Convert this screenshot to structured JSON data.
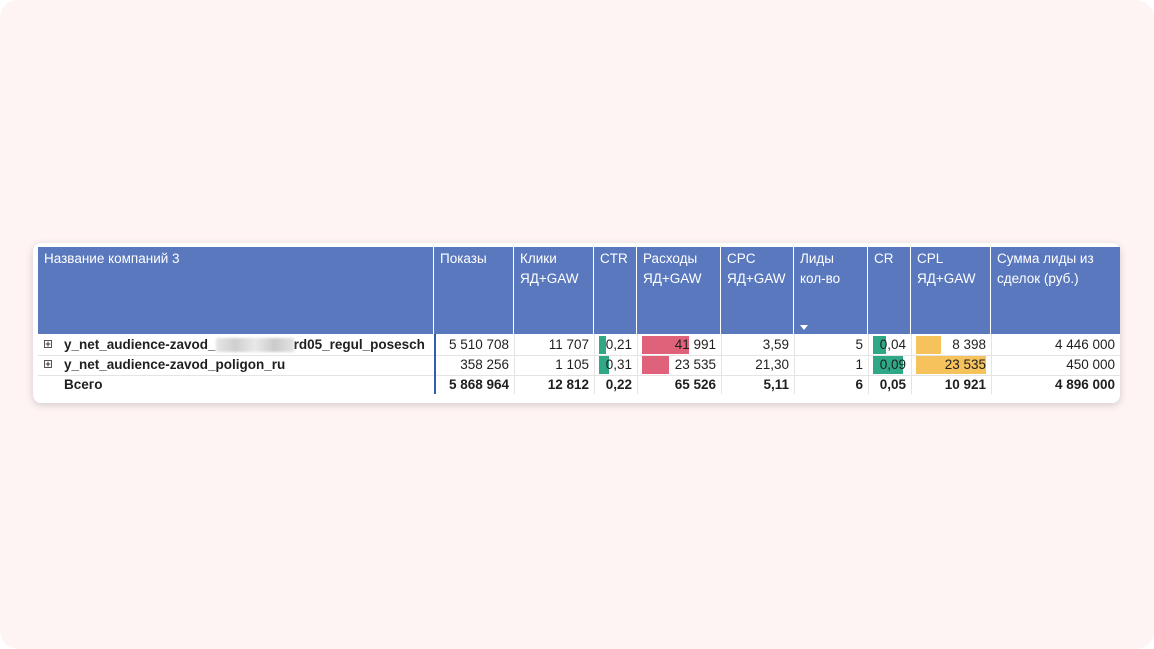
{
  "table": {
    "headers": [
      "Название компаний 3",
      "Показы",
      "Клики ЯД+GAW",
      "CTR",
      "Расходы ЯД+GAW",
      "CPC ЯД+GAW",
      "Лиды кол-во",
      "CR",
      "CPL ЯД+GAW",
      "Сумма лиды из сделок (руб.)"
    ],
    "sorted_column": "Лиды кол-во",
    "rows": [
      {
        "name_prefix": "y_net_audience-zavod_",
        "name_suffix": "rd05_regul_posesch",
        "impressions": "5 510 708",
        "clicks": "11 707",
        "ctr": "0,21",
        "cost": "41 991",
        "cpc": "3,59",
        "leads": "5",
        "cr": "0,04",
        "cpl": "8 398",
        "deal_sum": "4 446 000",
        "ctr_level": 0.21,
        "cost_level": 0.64,
        "cr_level": 0.4,
        "cpl_level": 0.36
      },
      {
        "name_prefix": "y_net_audience-zavod_poligon_ru",
        "name_suffix": "",
        "impressions": "358 256",
        "clicks": "1 105",
        "ctr": "0,31",
        "cost": "23 535",
        "cpc": "21,30",
        "leads": "1",
        "cr": "0,09",
        "cpl": "23 535",
        "deal_sum": "450 000",
        "ctr_level": 0.31,
        "cost_level": 0.36,
        "cr_level": 0.9,
        "cpl_level": 1.0
      }
    ],
    "total": {
      "label": "Всего",
      "impressions": "5 868 964",
      "clicks": "12 812",
      "ctr": "0,22",
      "cost": "65 526",
      "cpc": "5,11",
      "leads": "6",
      "cr": "0,05",
      "cpl": "10 921",
      "deal_sum": "4 896 000"
    }
  },
  "colors": {
    "header_bg": "#5a78bd",
    "ctr_bar": "#2fa888",
    "cost_bar": "#e0627a",
    "cr_bar": "#2fa888",
    "cpl_bar": "#f6c25c"
  },
  "icons": {
    "expand": "plus-square-icon",
    "sort": "sort-down-icon"
  }
}
